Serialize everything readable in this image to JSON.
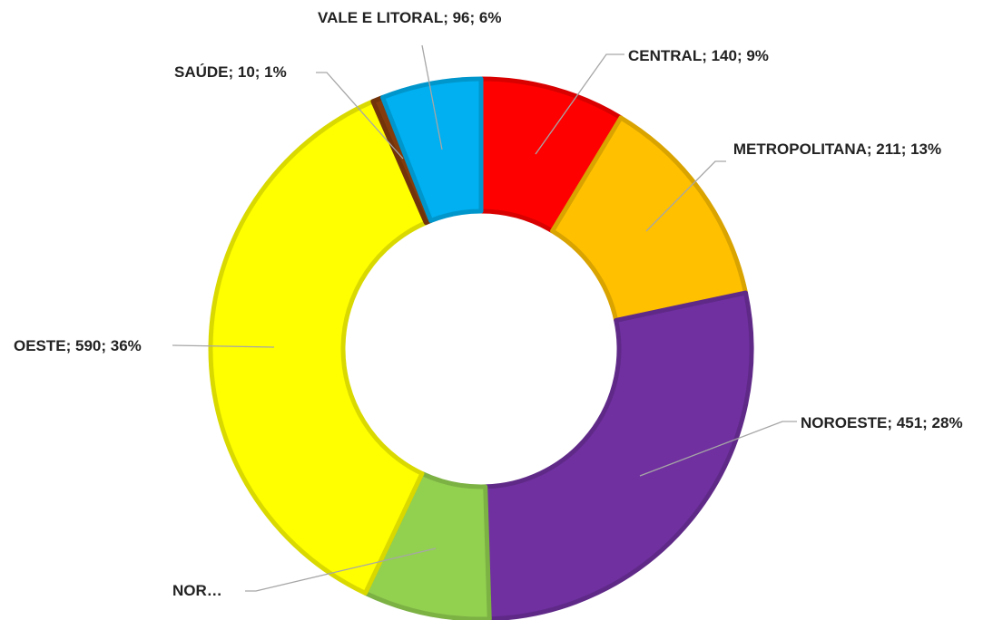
{
  "chart_data": {
    "type": "donut",
    "values": [
      140,
      211,
      451,
      122,
      590,
      10,
      96
    ],
    "value_labels": [
      "CENTRAL; 140; 9%",
      "METROPOLITANA; 211; 13%",
      "NOROESTE; 451; 28%",
      "NOR…",
      "OESTE; 590; 36%",
      "SAÚDE; 10; 1%",
      "VALE E LITORAL; 96; 6%"
    ],
    "colors": [
      "#ff0000",
      "#ffc000",
      "#7030a0",
      "#92d050",
      "#ffff00",
      "#843c0c",
      "#00b0f0"
    ]
  }
}
